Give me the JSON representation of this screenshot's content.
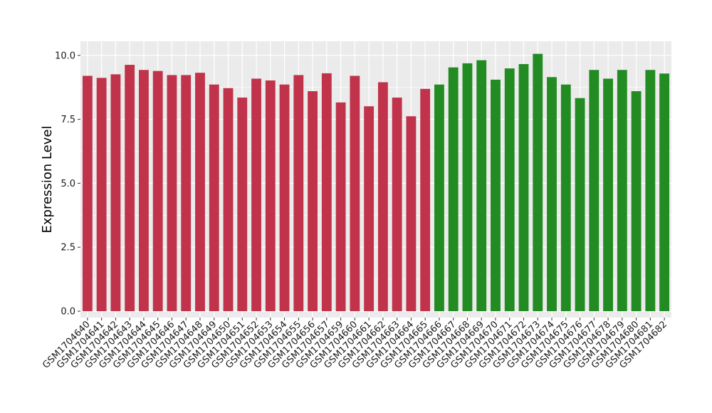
{
  "chart_data": {
    "type": "bar",
    "title": "",
    "xlabel": "",
    "ylabel": "Expression Level",
    "ylim": [
      -0.25,
      10.55
    ],
    "yticks": [
      0.0,
      2.5,
      5.0,
      7.5,
      10.0
    ],
    "ytick_labels": [
      "0.0",
      "2.5",
      "5.0",
      "7.5",
      "10.0"
    ],
    "grid": true,
    "legend": "none",
    "colors": {
      "group1": "#C0334A",
      "group2": "#228B22",
      "panel": "#EBEBEB",
      "gridline": "#FFFFFF"
    },
    "categories": [
      "GSM1704640",
      "GSM1704641",
      "GSM1704642",
      "GSM1704643",
      "GSM1704644",
      "GSM1704645",
      "GSM1704646",
      "GSM1704647",
      "GSM1704648",
      "GSM1704649",
      "GSM1704650",
      "GSM1704651",
      "GSM1704652",
      "GSM1704653",
      "GSM1704654",
      "GSM1704655",
      "GSM1704656",
      "GSM1704657",
      "GSM1704659",
      "GSM1704660",
      "GSM1704661",
      "GSM1704662",
      "GSM1704663",
      "GSM1704664",
      "GSM1704665",
      "GSM1704666",
      "GSM1704667",
      "GSM1704668",
      "GSM1704669",
      "GSM1704670",
      "GSM1704671",
      "GSM1704672",
      "GSM1704673",
      "GSM1704674",
      "GSM1704675",
      "GSM1704676",
      "GSM1704677",
      "GSM1704678",
      "GSM1704679",
      "GSM1704680",
      "GSM1704681",
      "GSM1704682"
    ],
    "values": [
      9.2,
      9.12,
      9.26,
      9.63,
      9.43,
      9.39,
      9.23,
      9.23,
      9.32,
      8.86,
      8.72,
      8.35,
      9.09,
      9.02,
      8.86,
      9.23,
      8.6,
      9.3,
      8.16,
      9.2,
      8.01,
      8.95,
      8.35,
      7.62,
      8.69,
      8.86,
      9.53,
      9.69,
      9.81,
      9.05,
      9.49,
      9.66,
      10.06,
      9.15,
      8.86,
      8.33,
      9.43,
      9.09,
      9.43,
      8.6,
      9.43,
      9.29
    ],
    "group": [
      1,
      1,
      1,
      1,
      1,
      1,
      1,
      1,
      1,
      1,
      1,
      1,
      1,
      1,
      1,
      1,
      1,
      1,
      1,
      1,
      1,
      1,
      1,
      1,
      1,
      2,
      2,
      2,
      2,
      2,
      2,
      2,
      2,
      2,
      2,
      2,
      2,
      2,
      2,
      2,
      2,
      2
    ]
  }
}
